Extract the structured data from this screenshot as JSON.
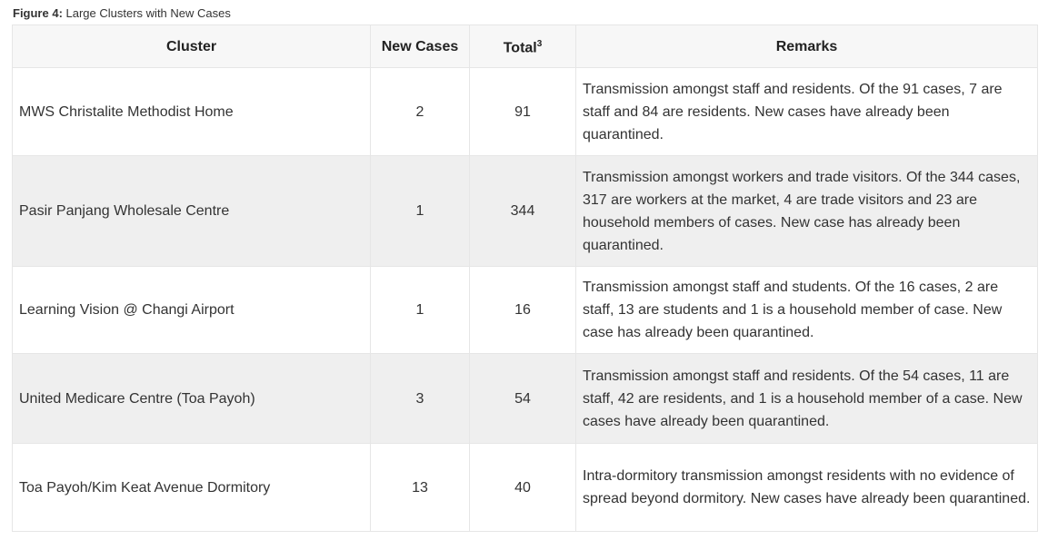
{
  "caption": {
    "label": "Figure 4:",
    "text": " Large Clusters with New Cases"
  },
  "headers": {
    "cluster": "Cluster",
    "new_cases": "New Cases",
    "total": "Total",
    "total_sup": "3",
    "remarks": "Remarks"
  },
  "rows": [
    {
      "cluster": "MWS Christalite Methodist Home",
      "new_cases": "2",
      "total": "91",
      "remarks": "Transmission amongst staff and residents. Of the 91 cases, 7 are staff and 84 are residents. New cases have already been quarantined."
    },
    {
      "cluster": "Pasir Panjang Wholesale Centre",
      "new_cases": "1",
      "total": "344",
      "remarks": "Transmission amongst workers and trade visitors. Of the 344 cases, 317 are workers at the market, 4 are trade visitors and 23 are household members of cases. New case has already been quarantined."
    },
    {
      "cluster": "Learning Vision @ Changi Airport",
      "new_cases": "1",
      "total": "16",
      "remarks": "Transmission amongst staff and students. Of the 16 cases, 2 are staff, 13 are students and 1 is a household member of case. New case has already been quarantined."
    },
    {
      "cluster": "United Medicare Centre (Toa Payoh)",
      "new_cases": "3",
      "total": "54",
      "remarks": "Transmission amongst staff and residents. Of the 54 cases, 11 are staff, 42 are residents, and 1 is a household member of a case. New cases have already been quarantined."
    },
    {
      "cluster": "Toa Payoh/Kim Keat Avenue Dormitory",
      "new_cases": "13",
      "total": "40",
      "remarks": "Intra-dormitory transmission amongst residents with no evidence of spread beyond dormitory. New cases have already been quarantined."
    }
  ]
}
